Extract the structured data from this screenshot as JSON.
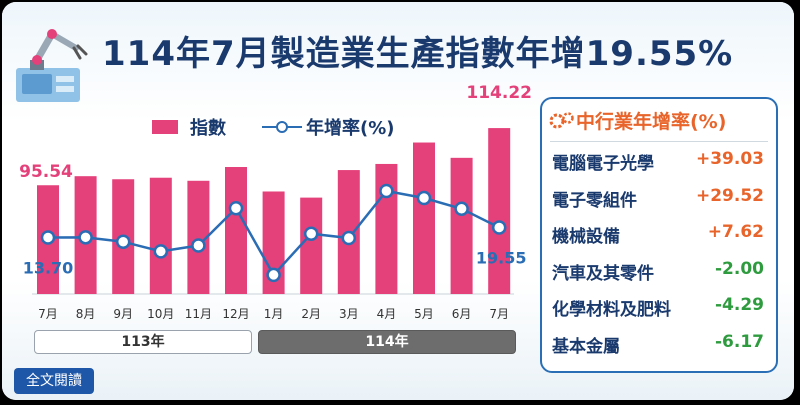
{
  "title": "114年7月製造業生產指數年增19.55%",
  "legend": {
    "bar_label": "指數",
    "line_label": "年增率(%)"
  },
  "year_labels": [
    "113年",
    "114年"
  ],
  "read_more": "全文閱讀",
  "colors": {
    "bar": "#e4407a",
    "line": "#2b6db5",
    "positive": "#e8642a",
    "negative": "#2e9b3e",
    "title": "#1a3a6e"
  },
  "chart_data": {
    "type": "bar",
    "categories": [
      "7月",
      "8月",
      "9月",
      "10月",
      "11月",
      "12月",
      "1月",
      "2月",
      "3月",
      "4月",
      "5月",
      "6月",
      "7月"
    ],
    "series": [
      {
        "name": "指數",
        "type": "bar",
        "values": [
          95.54,
          98.5,
          97.5,
          98.0,
          97.0,
          101.5,
          93.5,
          91.5,
          100.5,
          102.5,
          109.5,
          104.5,
          114.22
        ]
      },
      {
        "name": "年增率(%)",
        "type": "line",
        "values": [
          13.7,
          13.8,
          11.2,
          5.6,
          9.0,
          30.8,
          -8.2,
          15.9,
          13.4,
          40.9,
          36.8,
          30.5,
          19.55
        ]
      }
    ],
    "data_labels": {
      "bar_first": "95.54",
      "bar_last": "114.22",
      "line_first": "13.70",
      "line_last": "19.55"
    },
    "year_groups": [
      {
        "label": "113年",
        "months": 6
      },
      {
        "label": "114年",
        "months": 7
      }
    ]
  },
  "industry_panel": {
    "title": "中行業年增率(%)",
    "rows": [
      {
        "name": "電腦電子光學",
        "value": "+39.03",
        "sign": "positive"
      },
      {
        "name": "電子零組件",
        "value": "+29.52",
        "sign": "positive"
      },
      {
        "name": "機械設備",
        "value": "+7.62",
        "sign": "positive"
      },
      {
        "name": "汽車及其零件",
        "value": "-2.00",
        "sign": "negative"
      },
      {
        "name": "化學材料及肥料",
        "value": "-4.29",
        "sign": "negative"
      },
      {
        "name": "基本金屬",
        "value": "-6.17",
        "sign": "negative"
      }
    ]
  }
}
